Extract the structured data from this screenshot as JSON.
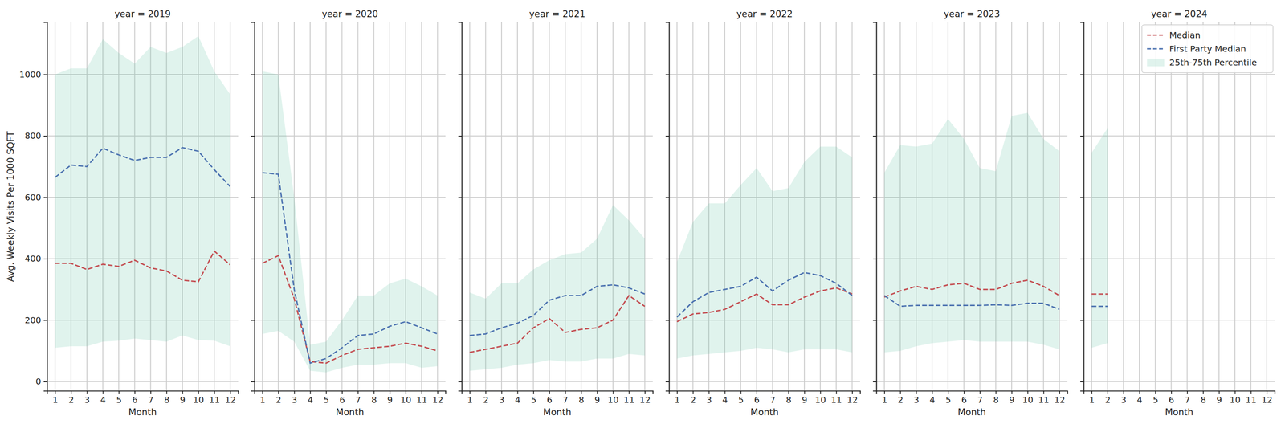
{
  "chart_data": [
    {
      "type": "line",
      "title": "year = 2019",
      "x_label": "Month",
      "y_label": "Avg. Weekly Visits Per 1000 SQFT",
      "x": [
        1,
        2,
        3,
        4,
        5,
        6,
        7,
        8,
        9,
        10,
        11,
        12
      ],
      "xlim": [
        0.5,
        12.5
      ],
      "xticks": [
        1,
        2,
        3,
        4,
        5,
        6,
        7,
        8,
        9,
        10,
        11,
        12
      ],
      "ylim": [
        -30,
        1170
      ],
      "yticks": [
        0,
        200,
        400,
        600,
        800,
        1000
      ],
      "grid": true,
      "series": [
        {
          "color": "#c44e52",
          "line_style": "dashed",
          "values": [
            385,
            385,
            365,
            382,
            375,
            395,
            370,
            360,
            330,
            325,
            425,
            380
          ]
        },
        {
          "color": "#4c72b0",
          "line_style": "dashed",
          "values": [
            665,
            705,
            700,
            760,
            738,
            720,
            730,
            730,
            762,
            750,
            690,
            635
          ]
        },
        {
          "type": "area",
          "color": "#66c2a5",
          "values": [
            1000,
            1020,
            1020,
            1115,
            1070,
            1035,
            1090,
            1070,
            1090,
            1125,
            1010,
            935
          ],
          "lower": [
            110,
            115,
            115,
            130,
            133,
            140,
            135,
            130,
            150,
            135,
            133,
            115
          ]
        }
      ]
    },
    {
      "type": "line",
      "title": "year = 2020",
      "x_label": "Month",
      "tick_labels": "x",
      "x": [
        1,
        2,
        3,
        4,
        5,
        6,
        7,
        8,
        9,
        10,
        11,
        12
      ],
      "xlim": [
        0.5,
        12.5
      ],
      "xticks": [
        1,
        2,
        3,
        4,
        5,
        6,
        7,
        8,
        9,
        10,
        11,
        12
      ],
      "ylim": [
        -30,
        1170
      ],
      "yticks": [
        0,
        200,
        400,
        600,
        800,
        1000
      ],
      "grid": true,
      "series": [
        {
          "color": "#c44e52",
          "line_style": "dashed",
          "values": [
            385,
            410,
            270,
            65,
            60,
            85,
            105,
            110,
            115,
            125,
            115,
            100
          ]
        },
        {
          "color": "#4c72b0",
          "line_style": "dashed",
          "values": [
            680,
            675,
            300,
            60,
            75,
            110,
            150,
            155,
            180,
            195,
            175,
            155
          ]
        },
        {
          "type": "area",
          "color": "#66c2a5",
          "values": [
            1010,
            1000,
            600,
            120,
            130,
            200,
            280,
            280,
            320,
            335,
            310,
            280
          ],
          "lower": [
            155,
            165,
            130,
            35,
            30,
            45,
            55,
            55,
            60,
            60,
            45,
            50
          ]
        }
      ]
    },
    {
      "type": "line",
      "title": "year = 2021",
      "x_label": "Month",
      "tick_labels": "x",
      "x": [
        1,
        2,
        3,
        4,
        5,
        6,
        7,
        8,
        9,
        10,
        11,
        12
      ],
      "xlim": [
        0.5,
        12.5
      ],
      "xticks": [
        1,
        2,
        3,
        4,
        5,
        6,
        7,
        8,
        9,
        10,
        11,
        12
      ],
      "ylim": [
        -30,
        1170
      ],
      "yticks": [
        0,
        200,
        400,
        600,
        800,
        1000
      ],
      "grid": true,
      "series": [
        {
          "color": "#c44e52",
          "line_style": "dashed",
          "values": [
            95,
            105,
            115,
            125,
            175,
            205,
            160,
            170,
            175,
            200,
            280,
            245
          ]
        },
        {
          "color": "#4c72b0",
          "line_style": "dashed",
          "values": [
            150,
            155,
            175,
            190,
            215,
            265,
            280,
            280,
            310,
            315,
            305,
            285
          ]
        },
        {
          "type": "area",
          "color": "#66c2a5",
          "values": [
            290,
            270,
            320,
            320,
            365,
            395,
            415,
            420,
            465,
            575,
            525,
            465
          ],
          "lower": [
            35,
            40,
            45,
            55,
            60,
            70,
            65,
            65,
            75,
            75,
            90,
            85
          ]
        }
      ]
    },
    {
      "type": "line",
      "title": "year = 2022",
      "x_label": "Month",
      "tick_labels": "x",
      "x": [
        1,
        2,
        3,
        4,
        5,
        6,
        7,
        8,
        9,
        10,
        11,
        12
      ],
      "xlim": [
        0.5,
        12.5
      ],
      "xticks": [
        1,
        2,
        3,
        4,
        5,
        6,
        7,
        8,
        9,
        10,
        11,
        12
      ],
      "ylim": [
        -30,
        1170
      ],
      "yticks": [
        0,
        200,
        400,
        600,
        800,
        1000
      ],
      "grid": true,
      "series": [
        {
          "color": "#c44e52",
          "line_style": "dashed",
          "values": [
            195,
            220,
            225,
            235,
            260,
            285,
            250,
            250,
            275,
            295,
            305,
            285
          ]
        },
        {
          "color": "#4c72b0",
          "line_style": "dashed",
          "values": [
            210,
            260,
            290,
            300,
            310,
            340,
            295,
            330,
            355,
            345,
            320,
            280
          ]
        },
        {
          "type": "area",
          "color": "#66c2a5",
          "values": [
            390,
            520,
            580,
            580,
            640,
            695,
            620,
            630,
            715,
            765,
            765,
            730
          ],
          "lower": [
            75,
            85,
            90,
            95,
            100,
            110,
            105,
            95,
            105,
            105,
            105,
            95
          ]
        }
      ]
    },
    {
      "type": "line",
      "title": "year = 2023",
      "x_label": "Month",
      "tick_labels": "x",
      "x": [
        1,
        2,
        3,
        4,
        5,
        6,
        7,
        8,
        9,
        10,
        11,
        12
      ],
      "xlim": [
        0.5,
        12.5
      ],
      "xticks": [
        1,
        2,
        3,
        4,
        5,
        6,
        7,
        8,
        9,
        10,
        11,
        12
      ],
      "ylim": [
        -30,
        1170
      ],
      "yticks": [
        0,
        200,
        400,
        600,
        800,
        1000
      ],
      "grid": true,
      "series": [
        {
          "color": "#c44e52",
          "line_style": "dashed",
          "values": [
            275,
            295,
            310,
            300,
            315,
            320,
            300,
            300,
            320,
            330,
            310,
            280
          ]
        },
        {
          "color": "#4c72b0",
          "line_style": "dashed",
          "values": [
            280,
            245,
            248,
            248,
            248,
            248,
            248,
            250,
            248,
            255,
            255,
            235
          ]
        },
        {
          "type": "area",
          "color": "#66c2a5",
          "values": [
            680,
            770,
            765,
            775,
            855,
            790,
            695,
            685,
            865,
            875,
            790,
            750
          ],
          "lower": [
            95,
            100,
            115,
            125,
            130,
            135,
            130,
            130,
            130,
            130,
            120,
            105
          ]
        }
      ]
    },
    {
      "type": "line",
      "title": "year = 2024",
      "x_label": "Month",
      "tick_labels": "x",
      "legend": "upper right",
      "x": [
        1,
        2
      ],
      "xlim": [
        0.5,
        12.5
      ],
      "xticks": [
        1,
        2,
        3,
        4,
        5,
        6,
        7,
        8,
        9,
        10,
        11,
        12
      ],
      "ylim": [
        -30,
        1170
      ],
      "yticks": [
        0,
        200,
        400,
        600,
        800,
        1000
      ],
      "grid": true,
      "series": [
        {
          "name": "Median",
          "color": "#c44e52",
          "line_style": "dashed",
          "values": [
            285,
            285
          ]
        },
        {
          "name": "First Party Median",
          "color": "#4c72b0",
          "line_style": "dashed",
          "values": [
            245,
            245
          ]
        },
        {
          "name": "25th-75th Percentile",
          "type": "area",
          "color": "#66c2a5",
          "values": [
            745,
            825
          ],
          "lower": [
            110,
            125
          ]
        }
      ]
    }
  ]
}
